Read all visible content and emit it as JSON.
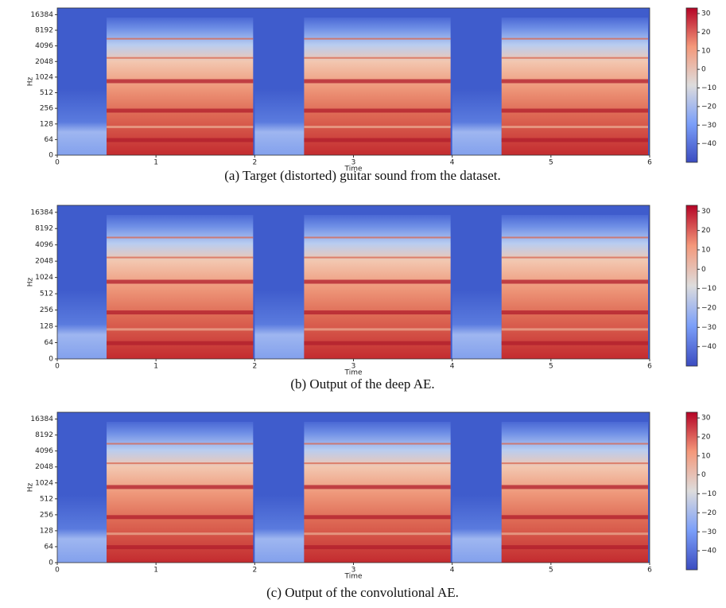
{
  "chart_data": [
    {
      "type": "spectrogram",
      "caption": "(a) Target (distorted) guitar sound from the dataset.",
      "xlabel": "Time",
      "ylabel": "Hz",
      "xlim": [
        0,
        6
      ],
      "xticks": [
        0,
        1,
        2,
        3,
        4,
        5,
        6
      ],
      "ylim": [
        0,
        22050
      ],
      "yscale": "symlog",
      "yticks": [
        0,
        64,
        128,
        256,
        512,
        1024,
        2048,
        4096,
        8192,
        16384
      ],
      "clim": [
        -50,
        33
      ],
      "cticks": [
        30,
        20,
        10,
        0,
        {
          "value": -10,
          "label": "−10"
        },
        {
          "value": -20,
          "label": "−20"
        },
        {
          "value": -30,
          "label": "−30"
        },
        {
          "value": -40,
          "label": "−40"
        }
      ]
    },
    {
      "type": "spectrogram",
      "caption": "(b) Output of the deep AE.",
      "xlabel": "Time",
      "ylabel": "Hz",
      "xlim": [
        0,
        6
      ],
      "xticks": [
        0,
        1,
        2,
        3,
        4,
        5,
        6
      ],
      "ylim": [
        0,
        22050
      ],
      "yscale": "symlog",
      "yticks": [
        0,
        64,
        128,
        256,
        512,
        1024,
        2048,
        4096,
        8192,
        16384
      ],
      "clim": [
        -50,
        33
      ],
      "cticks": [
        30,
        20,
        10,
        0,
        {
          "value": -10,
          "label": "−10"
        },
        {
          "value": -20,
          "label": "−20"
        },
        {
          "value": -30,
          "label": "−30"
        },
        {
          "value": -40,
          "label": "−40"
        }
      ]
    },
    {
      "type": "spectrogram",
      "caption": "(c) Output of the convolutional AE.",
      "xlabel": "Time",
      "ylabel": "Hz",
      "xlim": [
        0,
        6
      ],
      "xticks": [
        0,
        1,
        2,
        3,
        4,
        5,
        6
      ],
      "ylim": [
        0,
        22050
      ],
      "yscale": "symlog",
      "yticks": [
        0,
        64,
        128,
        256,
        512,
        1024,
        2048,
        4096,
        8192,
        16384
      ],
      "clim": [
        -50,
        33
      ],
      "cticks": [
        30,
        20,
        10,
        0,
        {
          "value": -10,
          "label": "−10"
        },
        {
          "value": -20,
          "label": "−20"
        },
        {
          "value": -30,
          "label": "−30"
        },
        {
          "value": -40,
          "label": "−40"
        }
      ]
    }
  ]
}
